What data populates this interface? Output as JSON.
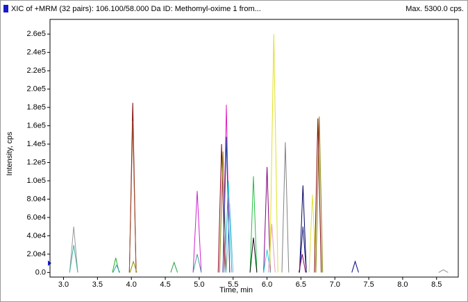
{
  "chart_data": {
    "type": "line",
    "title": "XIC of +MRM (32 pairs): 106.100/58.000 Da ID: Methomyl-oxime 1 from...",
    "annotation": "Max. 5300.0 cps.",
    "x_label": "Time, min",
    "y_label": "Intensity, cps",
    "xlim": [
      2.8,
      8.82
    ],
    "ylim": [
      -5000,
      276000
    ],
    "xticks": [
      {
        "value": 3,
        "label": "3.0"
      },
      {
        "value": 3.5,
        "label": "3.5"
      },
      {
        "value": 4,
        "label": "4.0"
      },
      {
        "value": 4.5,
        "label": "4.5"
      },
      {
        "value": 5,
        "label": "5.0"
      },
      {
        "value": 5.5,
        "label": "5.5"
      },
      {
        "value": 6,
        "label": "6.0"
      },
      {
        "value": 6.5,
        "label": "6.5"
      },
      {
        "value": 7,
        "label": "7.0"
      },
      {
        "value": 7.5,
        "label": "7.5"
      },
      {
        "value": 8,
        "label": "8.0"
      },
      {
        "value": 8.5,
        "label": "8.5"
      }
    ],
    "yticks": [
      {
        "value": 0,
        "label": "0.0"
      },
      {
        "value": 20000,
        "label": "2.0e4"
      },
      {
        "value": 40000,
        "label": "4.0e4"
      },
      {
        "value": 60000,
        "label": "6.0e4"
      },
      {
        "value": 80000,
        "label": "8.0e4"
      },
      {
        "value": 100000,
        "label": "1.0e5"
      },
      {
        "value": 120000,
        "label": "1.2e5"
      },
      {
        "value": 140000,
        "label": "1.4e5"
      },
      {
        "value": 160000,
        "label": "1.6e5"
      },
      {
        "value": 180000,
        "label": "1.8e5"
      },
      {
        "value": 200000,
        "label": "2.0e5"
      },
      {
        "value": 220000,
        "label": "2.2e5"
      },
      {
        "value": 240000,
        "label": "2.4e5"
      },
      {
        "value": 260000,
        "label": "2.6e5"
      }
    ],
    "series": [
      {
        "color": "#999999",
        "x": [
          3.09,
          3.15,
          3.21
        ],
        "values": [
          0,
          50000,
          0
        ]
      },
      {
        "color": "#40b0a0",
        "x": [
          3.09,
          3.15,
          3.21
        ],
        "values": [
          0,
          30000,
          0
        ]
      },
      {
        "color": "#20b020",
        "x": [
          3.72,
          3.77,
          3.82
        ],
        "values": [
          0,
          16000,
          0
        ]
      },
      {
        "color": "#30a0c0",
        "x": [
          3.73,
          3.78,
          3.83
        ],
        "values": [
          0,
          8000,
          0
        ]
      },
      {
        "color": "#800000",
        "x": [
          3.97,
          4.02,
          4.07
        ],
        "values": [
          0,
          185000,
          0
        ]
      },
      {
        "color": "#a05030",
        "x": [
          3.97,
          4.02,
          4.07
        ],
        "values": [
          0,
          165000,
          0
        ]
      },
      {
        "color": "#909000",
        "x": [
          3.98,
          4.03,
          4.08
        ],
        "values": [
          0,
          12000,
          0
        ]
      },
      {
        "color": "#20a040",
        "x": [
          4.58,
          4.63,
          4.68
        ],
        "values": [
          0,
          11000,
          0
        ]
      },
      {
        "color": "#d020d0",
        "x": [
          4.91,
          4.97,
          5.03
        ],
        "values": [
          0,
          89000,
          0
        ]
      },
      {
        "color": "#40a0a0",
        "x": [
          4.91,
          4.97,
          5.03
        ],
        "values": [
          0,
          20000,
          0
        ]
      },
      {
        "color": "#900020",
        "x": [
          5.28,
          5.33,
          5.38
        ],
        "values": [
          0,
          140000,
          0
        ]
      },
      {
        "color": "#808000",
        "x": [
          5.3,
          5.35,
          5.4
        ],
        "values": [
          0,
          132000,
          0
        ]
      },
      {
        "color": "#e020c0",
        "x": [
          5.35,
          5.4,
          5.45
        ],
        "values": [
          0,
          183000,
          0
        ]
      },
      {
        "color": "#2040a0",
        "x": [
          5.35,
          5.4,
          5.45
        ],
        "values": [
          0,
          148000,
          0
        ]
      },
      {
        "color": "#20c0d0",
        "x": [
          5.38,
          5.43,
          5.48
        ],
        "values": [
          0,
          100000,
          0
        ]
      },
      {
        "color": "#80c0e0",
        "x": [
          5.4,
          5.45,
          5.5
        ],
        "values": [
          0,
          75000,
          0
        ]
      },
      {
        "color": "#20c040",
        "x": [
          5.75,
          5.8,
          5.85
        ],
        "values": [
          0,
          105000,
          0
        ]
      },
      {
        "color": "#101010",
        "x": [
          5.75,
          5.8,
          5.85
        ],
        "values": [
          0,
          38000,
          0
        ]
      },
      {
        "color": "#800080",
        "x": [
          5.95,
          6.0,
          6.05
        ],
        "values": [
          0,
          115000,
          0
        ]
      },
      {
        "color": "#20d0e0",
        "x": [
          5.95,
          6.0,
          6.05
        ],
        "values": [
          0,
          25000,
          0
        ]
      },
      {
        "color": "#e0a0c0",
        "x": [
          6.02,
          6.07,
          6.12
        ],
        "values": [
          0,
          53000,
          0
        ]
      },
      {
        "color": "#e0e020",
        "x": [
          6.04,
          6.1,
          6.16
        ],
        "values": [
          0,
          260000,
          0
        ]
      },
      {
        "color": "#808080",
        "x": [
          6.22,
          6.27,
          6.32
        ],
        "values": [
          0,
          142000,
          0
        ]
      },
      {
        "color": "#000060",
        "x": [
          6.48,
          6.53,
          6.58
        ],
        "values": [
          0,
          95000,
          0
        ]
      },
      {
        "color": "#202080",
        "x": [
          6.48,
          6.53,
          6.58
        ],
        "values": [
          0,
          50000,
          0
        ]
      },
      {
        "color": "#800060",
        "x": [
          6.47,
          6.52,
          6.57
        ],
        "values": [
          0,
          20000,
          0
        ]
      },
      {
        "color": "#e0e040",
        "x": [
          6.62,
          6.67,
          6.72
        ],
        "values": [
          0,
          85000,
          0
        ]
      },
      {
        "color": "#808000",
        "x": [
          6.72,
          6.77,
          6.82
        ],
        "values": [
          0,
          170000,
          0
        ]
      },
      {
        "color": "#800000",
        "x": [
          6.7,
          6.75,
          6.8
        ],
        "values": [
          0,
          168000,
          0
        ]
      },
      {
        "color": "#000080",
        "x": [
          7.25,
          7.3,
          7.35
        ],
        "values": [
          0,
          12000,
          0
        ]
      },
      {
        "color": "#909090",
        "x": [
          8.53,
          8.6,
          8.67
        ],
        "values": [
          0,
          3000,
          0
        ]
      }
    ]
  }
}
